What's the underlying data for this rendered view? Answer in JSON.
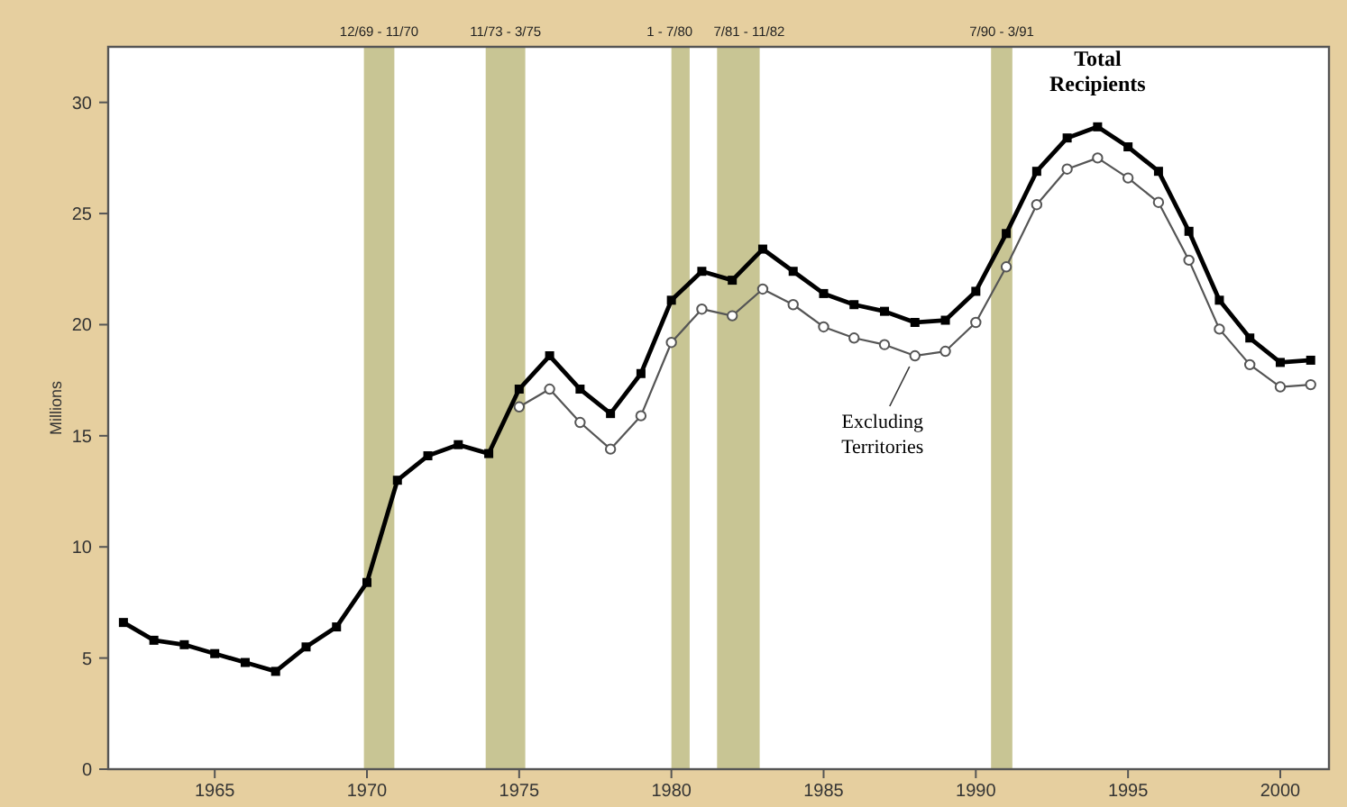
{
  "chart_data": {
    "type": "line",
    "ylabel": "Millions",
    "xlim": [
      1961.5,
      2001.6
    ],
    "xticks": [
      1965,
      1970,
      1975,
      1980,
      1985,
      1990,
      1995,
      2000
    ],
    "ylim": [
      0,
      32.5
    ],
    "yticks": [
      0,
      5,
      10,
      15,
      20,
      25,
      30
    ],
    "grid": false,
    "legend": false,
    "line_style": "solid",
    "series": [
      {
        "name": "Total Recipients",
        "color": "#000000",
        "marker": "square",
        "x": [
          1962,
          1963,
          1964,
          1965,
          1966,
          1967,
          1968,
          1969,
          1970,
          1971,
          1972,
          1973,
          1974,
          1975,
          1976,
          1977,
          1978,
          1979,
          1980,
          1981,
          1982,
          1983,
          1984,
          1985,
          1986,
          1987,
          1988,
          1989,
          1990,
          1991,
          1992,
          1993,
          1994,
          1995,
          1996,
          1997,
          1998,
          1999,
          2000,
          2001
        ],
        "values": [
          6.6,
          5.8,
          5.6,
          5.2,
          4.8,
          4.4,
          5.5,
          6.4,
          8.4,
          13.0,
          14.1,
          14.6,
          14.2,
          17.1,
          18.6,
          17.1,
          16.0,
          17.8,
          21.1,
          22.4,
          22.0,
          23.4,
          22.4,
          21.4,
          20.9,
          20.6,
          20.1,
          20.2,
          21.5,
          24.1,
          26.9,
          28.4,
          28.9,
          28.0,
          26.9,
          24.2,
          21.1,
          19.4,
          18.3,
          18.4
        ]
      },
      {
        "name": "Excluding Territories",
        "color": "#555555",
        "marker": "circle",
        "x": [
          1975,
          1976,
          1977,
          1978,
          1979,
          1980,
          1981,
          1982,
          1983,
          1984,
          1985,
          1986,
          1987,
          1988,
          1989,
          1990,
          1991,
          1992,
          1993,
          1994,
          1995,
          1996,
          1997,
          1998,
          1999,
          2000,
          2001
        ],
        "values": [
          16.3,
          17.1,
          15.6,
          14.4,
          15.9,
          19.2,
          20.7,
          20.4,
          21.6,
          20.9,
          19.9,
          19.4,
          19.1,
          18.6,
          18.8,
          20.1,
          22.6,
          25.4,
          27.0,
          27.5,
          26.6,
          25.5,
          22.9,
          19.8,
          18.2,
          17.2,
          17.3
        ]
      }
    ],
    "bands": [
      {
        "axis": "x",
        "from": 1969.9,
        "to": 1970.9,
        "label": "12/69 - 11/70",
        "color": "#c8c594"
      },
      {
        "axis": "x",
        "from": 1973.9,
        "to": 1975.2,
        "label": "11/73 - 3/75",
        "color": "#c8c594"
      },
      {
        "axis": "x",
        "from": 1980.0,
        "to": 1980.6,
        "label": "1 - 7/80",
        "color": "#c8c594"
      },
      {
        "axis": "x",
        "from": 1981.5,
        "to": 1982.9,
        "label": "7/81 - 11/82",
        "color": "#c8c594"
      },
      {
        "axis": "x",
        "from": 1990.5,
        "to": 1991.2,
        "label": "7/90 - 3/91",
        "color": "#c8c594"
      }
    ]
  }
}
